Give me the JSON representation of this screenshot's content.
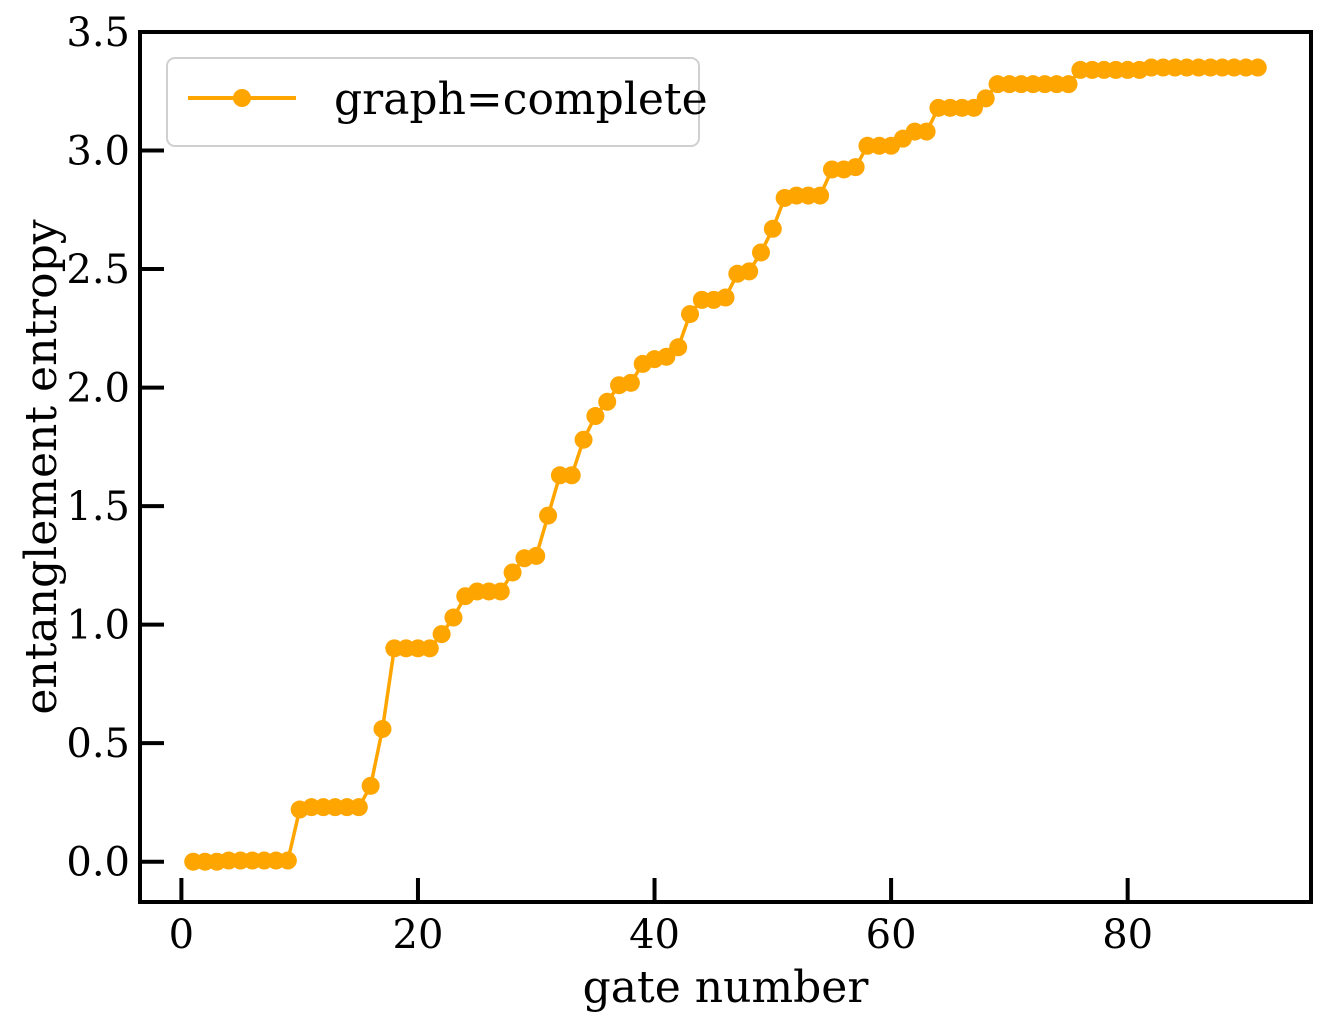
{
  "chart_data": {
    "type": "line",
    "title": "",
    "xlabel": "gate number",
    "ylabel": "entanglement entropy",
    "xlim": [
      -3.5,
      95.5
    ],
    "ylim": [
      -0.17,
      3.5
    ],
    "xticks": [
      0,
      20,
      40,
      60,
      80
    ],
    "yticks": [
      0.0,
      0.5,
      1.0,
      1.5,
      2.0,
      2.5,
      3.0,
      3.5
    ],
    "xtick_labels": [
      "0",
      "20",
      "40",
      "60",
      "80"
    ],
    "ytick_labels": [
      "0.0",
      "0.5",
      "1.0",
      "1.5",
      "2.0",
      "2.5",
      "3.0",
      "3.5"
    ],
    "grid": false,
    "legend_position": "top-left",
    "color": "#FFA500",
    "series": [
      {
        "name": "graph=complete",
        "x": [
          1,
          2,
          3,
          4,
          5,
          6,
          7,
          8,
          9,
          10,
          11,
          12,
          13,
          14,
          15,
          16,
          17,
          18,
          19,
          20,
          21,
          22,
          23,
          24,
          25,
          26,
          27,
          28,
          29,
          30,
          31,
          32,
          33,
          34,
          35,
          36,
          37,
          38,
          39,
          40,
          41,
          42,
          43,
          44,
          45,
          46,
          47,
          48,
          49,
          50,
          51,
          52,
          53,
          54,
          55,
          56,
          57,
          58,
          59,
          60,
          61,
          62,
          63,
          64,
          65,
          66,
          67,
          68,
          69,
          70,
          71,
          72,
          73,
          74,
          75,
          76,
          77,
          78,
          79,
          80,
          81,
          82,
          83,
          84,
          85,
          86,
          87,
          88,
          89,
          90,
          91
        ],
        "y": [
          0.0,
          0.0,
          0.0,
          0.005,
          0.005,
          0.005,
          0.005,
          0.005,
          0.005,
          0.22,
          0.23,
          0.23,
          0.23,
          0.23,
          0.23,
          0.32,
          0.56,
          0.9,
          0.9,
          0.9,
          0.9,
          0.96,
          1.03,
          1.12,
          1.14,
          1.14,
          1.14,
          1.22,
          1.28,
          1.29,
          1.46,
          1.63,
          1.63,
          1.78,
          1.88,
          1.94,
          2.01,
          2.02,
          2.1,
          2.12,
          2.13,
          2.17,
          2.31,
          2.37,
          2.37,
          2.38,
          2.48,
          2.49,
          2.57,
          2.67,
          2.8,
          2.81,
          2.81,
          2.81,
          2.92,
          2.92,
          2.93,
          3.02,
          3.02,
          3.02,
          3.05,
          3.08,
          3.08,
          3.18,
          3.18,
          3.18,
          3.18,
          3.22,
          3.28,
          3.28,
          3.28,
          3.28,
          3.28,
          3.28,
          3.28,
          3.34,
          3.34,
          3.34,
          3.34,
          3.34,
          3.34,
          3.35,
          3.35,
          3.35,
          3.35,
          3.35,
          3.35,
          3.35,
          3.35,
          3.35,
          3.35
        ]
      }
    ]
  }
}
